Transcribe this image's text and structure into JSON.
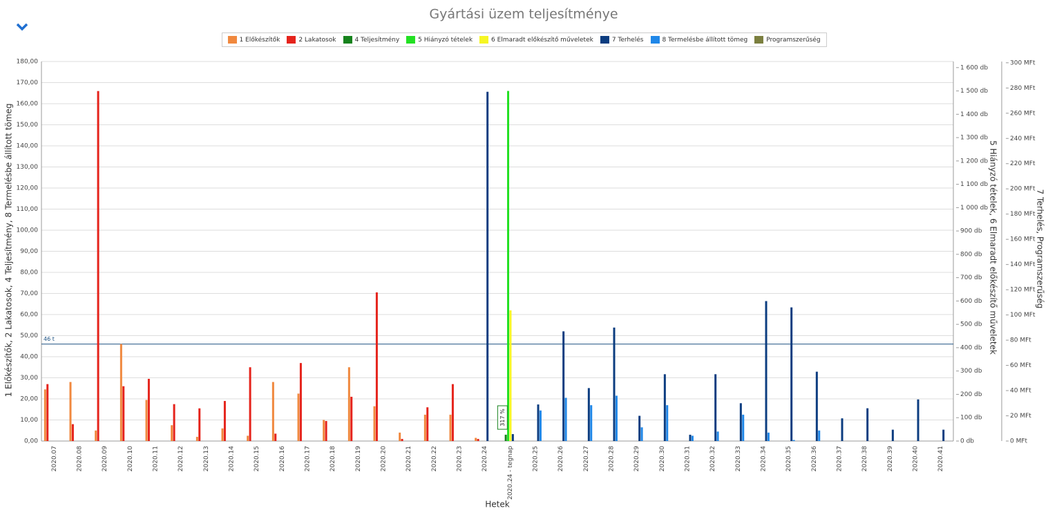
{
  "chart_data": {
    "type": "bar",
    "title": "Gyártási üzem teljesítménye",
    "x_label": "Hetek",
    "y_label": "1 Előkészítők, 2 Lakatosok, 4 Teljesítmény, 8 Termelésbe állított tömeg",
    "y2_label": "5 Hiányzó tételek, 6 Elmaradt előkészítő műveletek",
    "y3_label": "7 Terhelés, Programszerűség",
    "categories": [
      "2020.07",
      "2020.08",
      "2020.09",
      "2020.10",
      "2020.11",
      "2020.12",
      "2020.13",
      "2020.14",
      "2020.15",
      "2020.16",
      "2020.17",
      "2020.18",
      "2020.19",
      "2020.20",
      "2020.21",
      "2020.22",
      "2020.23",
      "2020.24",
      "2020.24 - tegnap",
      "2020.25",
      "2020.26",
      "2020.27",
      "2020.28",
      "2020.29",
      "2020.30",
      "2020.31",
      "2020.32",
      "2020.33",
      "2020.34",
      "2020.35",
      "2020.36",
      "2020.37",
      "2020.38",
      "2020.39",
      "2020.40",
      "2020.41"
    ],
    "series": [
      {
        "name": "1 Előkészítők",
        "color": "#f0883e",
        "axis": "y",
        "values": [
          24.5,
          28,
          5,
          46,
          19.5,
          7.5,
          2,
          6,
          2.5,
          28,
          22.5,
          10,
          35,
          16.5,
          4,
          12.5,
          12.5,
          1.5,
          null,
          null,
          null,
          null,
          null,
          null,
          null,
          null,
          null,
          null,
          null,
          null,
          null,
          null,
          null,
          null,
          null,
          null
        ]
      },
      {
        "name": "2 Lakatosok",
        "color": "#e5231b",
        "axis": "y",
        "values": [
          27,
          8,
          166,
          26,
          29.5,
          17.5,
          15.5,
          19,
          35,
          3.5,
          37,
          9.5,
          21,
          70.5,
          1,
          16,
          27,
          1,
          null,
          null,
          null,
          null,
          null,
          null,
          null,
          null,
          null,
          null,
          null,
          null,
          null,
          null,
          null,
          null,
          null,
          null
        ]
      },
      {
        "name": "4 Teljesítmény",
        "color": "#16821c",
        "axis": "y",
        "values": [
          null,
          null,
          null,
          null,
          null,
          null,
          null,
          null,
          null,
          null,
          null,
          null,
          null,
          null,
          null,
          null,
          null,
          null,
          3,
          null,
          null,
          null,
          null,
          null,
          null,
          null,
          null,
          null,
          null,
          null,
          null,
          null,
          null,
          null,
          null,
          null
        ]
      },
      {
        "name": "5 Hiányzó tételek",
        "color": "#22e022",
        "axis": "y2",
        "values": [
          null,
          null,
          null,
          null,
          null,
          null,
          null,
          null,
          null,
          null,
          null,
          null,
          null,
          null,
          null,
          null,
          null,
          null,
          1500,
          null,
          null,
          null,
          null,
          null,
          null,
          null,
          null,
          null,
          null,
          null,
          null,
          null,
          null,
          null,
          null,
          null
        ]
      },
      {
        "name": "6 Elmaradt előkészítő műveletek",
        "color": "#f6f623",
        "axis": "y2",
        "values": [
          null,
          null,
          null,
          null,
          null,
          null,
          null,
          null,
          null,
          null,
          null,
          null,
          null,
          null,
          null,
          null,
          null,
          null,
          560,
          null,
          null,
          null,
          null,
          null,
          null,
          null,
          null,
          null,
          null,
          null,
          null,
          null,
          null,
          null,
          null,
          null
        ]
      },
      {
        "name": "7 Terhelés",
        "color": "#0c3d80",
        "axis": "y3",
        "values": [
          null,
          null,
          null,
          null,
          null,
          null,
          null,
          null,
          null,
          null,
          null,
          null,
          null,
          null,
          null,
          null,
          null,
          277,
          5.5,
          29,
          87,
          42,
          90,
          20,
          53,
          5,
          53,
          30,
          111,
          106,
          55,
          18,
          26,
          9,
          33,
          9
        ]
      },
      {
        "name": "8 Termelésbe állított tömeg",
        "color": "#1f87e8",
        "axis": "y",
        "values": [
          null,
          null,
          null,
          null,
          null,
          null,
          null,
          null,
          null,
          null,
          null,
          null,
          null,
          null,
          null,
          null,
          null,
          null,
          null,
          14.5,
          20.5,
          17,
          21.5,
          6.5,
          17,
          2.5,
          4.5,
          12.5,
          4,
          0.5,
          5,
          null,
          null,
          null,
          null,
          null
        ]
      },
      {
        "name": "Programszerűség",
        "color": "#7b7f3f",
        "axis": "y3",
        "values": [
          null,
          null,
          null,
          null,
          null,
          null,
          null,
          null,
          null,
          null,
          null,
          null,
          null,
          null,
          null,
          null,
          null,
          null,
          null,
          null,
          null,
          null,
          null,
          null,
          null,
          null,
          null,
          null,
          null,
          null,
          null,
          null,
          null,
          null,
          null,
          null
        ]
      }
    ],
    "annotation": "317 %",
    "reference_line": {
      "value": 46,
      "label": "46 t"
    },
    "ylim": [
      0,
      180
    ],
    "yticks": [
      {
        "value": 0,
        "label": "0,00"
      },
      {
        "value": 10,
        "label": "10,00"
      },
      {
        "value": 20,
        "label": "20,00"
      },
      {
        "value": 30,
        "label": "30,00"
      },
      {
        "value": 40,
        "label": "40,00"
      },
      {
        "value": 50,
        "label": "50,00"
      },
      {
        "value": 60,
        "label": "60,00"
      },
      {
        "value": 70,
        "label": "70,00"
      },
      {
        "value": 80,
        "label": "80,00"
      },
      {
        "value": 90,
        "label": "90,00"
      },
      {
        "value": 100,
        "label": "100,00"
      },
      {
        "value": 110,
        "label": "110,00"
      },
      {
        "value": 120,
        "label": "120,00"
      },
      {
        "value": 130,
        "label": "130,00"
      },
      {
        "value": 140,
        "label": "140,00"
      },
      {
        "value": 150,
        "label": "150,00"
      },
      {
        "value": 160,
        "label": "160,00"
      },
      {
        "value": 170,
        "label": "170,00"
      },
      {
        "value": 180,
        "label": "180,00"
      }
    ],
    "y2lim": [
      0,
      1626
    ],
    "y2ticks": [
      {
        "value": 0,
        "label": "0 db"
      },
      {
        "value": 100,
        "label": "100 db"
      },
      {
        "value": 200,
        "label": "200 db"
      },
      {
        "value": 300,
        "label": "300 db"
      },
      {
        "value": 400,
        "label": "400 db"
      },
      {
        "value": 500,
        "label": "500 db"
      },
      {
        "value": 600,
        "label": "600 db"
      },
      {
        "value": 700,
        "label": "700 db"
      },
      {
        "value": 800,
        "label": "800 db"
      },
      {
        "value": 900,
        "label": "900 db"
      },
      {
        "value": 1000,
        "label": "1 000 db"
      },
      {
        "value": 1100,
        "label": "1 100 db"
      },
      {
        "value": 1200,
        "label": "1 200 db"
      },
      {
        "value": 1300,
        "label": "1 300 db"
      },
      {
        "value": 1400,
        "label": "1 400 db"
      },
      {
        "value": 1500,
        "label": "1 500 db"
      },
      {
        "value": 1600,
        "label": "1 600 db"
      }
    ],
    "y3lim": [
      0,
      301
    ],
    "y3ticks": [
      {
        "value": 0,
        "label": "0 MFt"
      },
      {
        "value": 20,
        "label": "20 MFt"
      },
      {
        "value": 40,
        "label": "40 MFt"
      },
      {
        "value": 60,
        "label": "60 MFt"
      },
      {
        "value": 80,
        "label": "80 MFt"
      },
      {
        "value": 100,
        "label": "100 MFt"
      },
      {
        "value": 120,
        "label": "120 MFt"
      },
      {
        "value": 140,
        "label": "140 MFt"
      },
      {
        "value": 160,
        "label": "160 MFt"
      },
      {
        "value": 180,
        "label": "180 MFt"
      },
      {
        "value": 200,
        "label": "200 MFt"
      },
      {
        "value": 220,
        "label": "220 MFt"
      },
      {
        "value": 240,
        "label": "240 MFt"
      },
      {
        "value": 260,
        "label": "260 MFt"
      },
      {
        "value": 280,
        "label": "280 MFt"
      },
      {
        "value": 300,
        "label": "300 MFt"
      }
    ],
    "grid": true
  }
}
